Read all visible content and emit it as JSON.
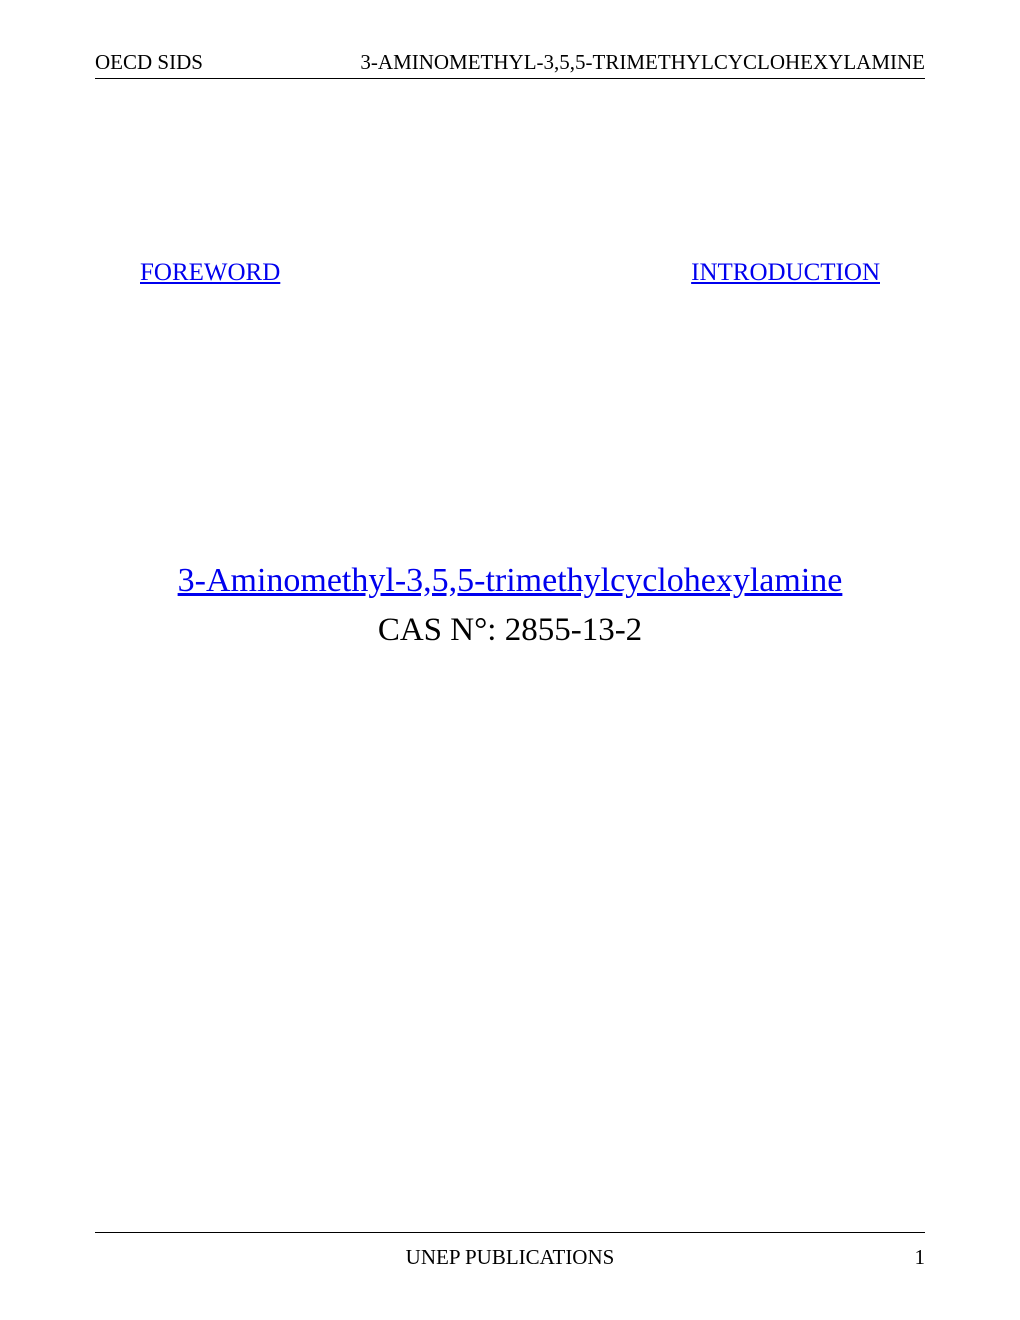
{
  "header": {
    "left": "OECD SIDS",
    "right": "3-AMINOMETHYL-3,5,5-TRIMETHYLCYCLOHEXYLAMINE"
  },
  "nav": {
    "foreword": "FOREWORD",
    "introduction": "INTRODUCTION"
  },
  "main": {
    "chemical_name": "3-Aminomethyl-3,5,5-trimethylcyclohexylamine",
    "cas_number": "CAS N°: 2855-13-2"
  },
  "footer": {
    "center": "UNEP PUBLICATIONS",
    "page_number": "1"
  },
  "colors": {
    "link_color": "#0000EE",
    "text_color": "#000000",
    "background": "#ffffff",
    "border_color": "#000000"
  },
  "typography": {
    "font_family": "Times New Roman",
    "header_fontsize": 21,
    "nav_fontsize": 25,
    "title_fontsize": 34,
    "cas_fontsize": 33,
    "footer_fontsize": 21
  }
}
